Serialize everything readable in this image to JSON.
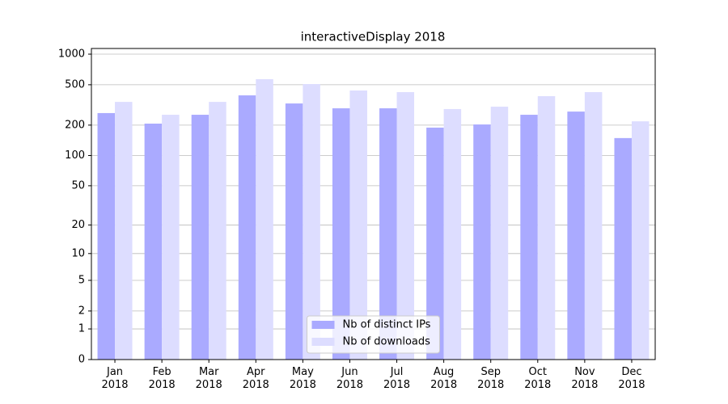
{
  "chart_data": {
    "type": "bar",
    "title": "interactiveDisplay 2018",
    "categories": [
      "Jan\n2018",
      "Feb\n2018",
      "Mar\n2018",
      "Apr\n2018",
      "May\n2018",
      "Jun\n2018",
      "Jul\n2018",
      "Aug\n2018",
      "Sep\n2018",
      "Oct\n2018",
      "Nov\n2018",
      "Dec\n2018"
    ],
    "series": [
      {
        "name": "Nb of distinct IPs",
        "color": "#aaaaff",
        "values": [
          263,
          207,
          253,
          393,
          327,
          293,
          293,
          189,
          203,
          253,
          272,
          149
        ]
      },
      {
        "name": "Nb of downloads",
        "color": "#ddddff",
        "values": [
          339,
          253,
          339,
          567,
          508,
          439,
          423,
          288,
          304,
          386,
          423,
          218
        ]
      }
    ],
    "yscale": "log1p",
    "ylim": [
      0,
      1137
    ],
    "yticks": [
      0,
      1,
      2,
      5,
      10,
      20,
      50,
      100,
      200,
      500,
      1000
    ],
    "grid": true,
    "legend": "lower center"
  }
}
